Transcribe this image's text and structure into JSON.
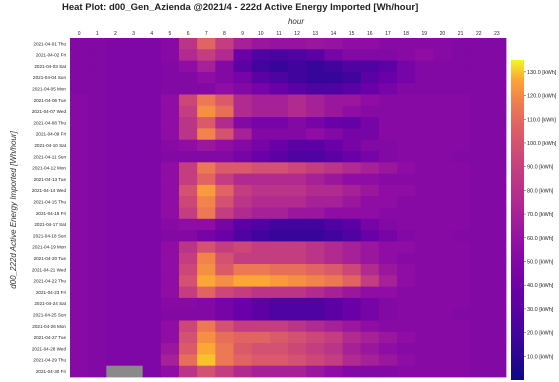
{
  "title": "Heat Plot: d00_Gen_Azienda  @2021/4 - 222d Active Energy Imported [Wh/hour]",
  "chart_data": {
    "type": "heatmap",
    "title": "Heat Plot: d00_Gen_Azienda  @2021/4 - 222d Active Energy Imported [Wh/hour]",
    "xlabel": "hour",
    "ylabel": "d00_222d Active Energy Imported [Wh/hour]",
    "x": [
      "0",
      "1",
      "2",
      "3",
      "4",
      "5",
      "6",
      "7",
      "8",
      "9",
      "10",
      "11",
      "12",
      "13",
      "14",
      "15",
      "16",
      "17",
      "18",
      "19",
      "20",
      "21",
      "22",
      "23"
    ],
    "y": [
      "2021-04-01 Thu",
      "2021-04-02 Fri",
      "2021-04-03 Sat",
      "2021-04-04 Sun",
      "2021-04-05 Mon",
      "2021-04-06 Tue",
      "2021-04-07 Wed",
      "2021-04-08 Thu",
      "2021-04-09 Fri",
      "2021-04-10 Sat",
      "2021-04-11 Sun",
      "2021-04-12 Mon",
      "2021-04-13 Tue",
      "2021-04-14 Wed",
      "2021-04-15 Thu",
      "2021-04-16 Fri",
      "2021-04-17 Sat",
      "2021-04-18 Sun",
      "2021-04-19 Mon",
      "2021-04-20 Tue",
      "2021-04-21 Wed",
      "2021-04-22 Thu",
      "2021-04-23 Fri",
      "2021-04-24 Sat",
      "2021-04-25 Sun",
      "2021-04-26 Mon",
      "2021-04-27 Tue",
      "2021-04-28 Wed",
      "2021-04-29 Thu",
      "2021-04-30 Fri"
    ],
    "x_tick_labels": [
      "0",
      "1",
      "2",
      "3",
      "4",
      "5",
      "6",
      "7",
      "8",
      "9",
      "10",
      "11",
      "12",
      "13",
      "14",
      "15",
      "16",
      "17",
      "18",
      "19",
      "20",
      "21",
      "22",
      "23"
    ],
    "y_tick_labels": [
      "2021-04-01 Thu",
      "2021-04-02 Fri",
      "2021-04-03 Sat",
      "2021-04-04 Sun",
      "2021-04-05 Mon",
      "2021-04-06 Tue",
      "2021-04-07 Wed",
      "2021-04-08 Thu",
      "2021-04-09 Fri",
      "2021-04-10 Sat",
      "2021-04-11 Sun",
      "2021-04-12 Mon",
      "2021-04-13 Tue",
      "2021-04-14 Wed",
      "2021-04-15 Thu",
      "2021-04-16 Fri",
      "2021-04-17 Sat",
      "2021-04-18 Sun",
      "2021-04-19 Mon",
      "2021-04-20 Tue",
      "2021-04-21 Wed",
      "2021-04-22 Thu",
      "2021-04-23 Fri",
      "2021-04-24 Sat",
      "2021-04-25 Sun",
      "2021-04-26 Mon",
      "2021-04-27 Tue",
      "2021-04-28 Wed",
      "2021-04-29 Thu",
      "2021-04-30 Fri"
    ],
    "values": [
      [
        40,
        40,
        38,
        38,
        38,
        42,
        65,
        90,
        70,
        55,
        50,
        48,
        48,
        50,
        48,
        45,
        45,
        42,
        42,
        42,
        42,
        40,
        40,
        40
      ],
      [
        40,
        40,
        38,
        38,
        38,
        42,
        60,
        70,
        60,
        30,
        20,
        18,
        20,
        25,
        35,
        40,
        40,
        40,
        42,
        45,
        42,
        40,
        40,
        40
      ],
      [
        40,
        40,
        38,
        38,
        38,
        40,
        45,
        55,
        40,
        25,
        15,
        12,
        15,
        12,
        15,
        20,
        20,
        25,
        35,
        40,
        40,
        40,
        40,
        40
      ],
      [
        40,
        40,
        38,
        38,
        38,
        40,
        40,
        45,
        40,
        35,
        25,
        20,
        15,
        12,
        12,
        15,
        25,
        30,
        35,
        40,
        40,
        40,
        40,
        40
      ],
      [
        40,
        40,
        38,
        38,
        38,
        40,
        40,
        40,
        45,
        40,
        35,
        30,
        25,
        20,
        20,
        25,
        30,
        35,
        40,
        40,
        40,
        40,
        40,
        40
      ],
      [
        42,
        40,
        38,
        38,
        38,
        45,
        75,
        100,
        85,
        60,
        55,
        55,
        60,
        55,
        50,
        50,
        45,
        42,
        42,
        42,
        42,
        42,
        40,
        40
      ],
      [
        42,
        40,
        38,
        38,
        38,
        45,
        70,
        110,
        95,
        60,
        55,
        55,
        60,
        55,
        50,
        45,
        42,
        42,
        42,
        42,
        42,
        42,
        40,
        40
      ],
      [
        42,
        40,
        38,
        38,
        38,
        45,
        65,
        85,
        60,
        40,
        35,
        35,
        40,
        35,
        30,
        28,
        35,
        42,
        42,
        42,
        42,
        42,
        40,
        40
      ],
      [
        42,
        40,
        38,
        38,
        38,
        45,
        65,
        105,
        80,
        55,
        40,
        40,
        40,
        45,
        40,
        35,
        35,
        42,
        42,
        42,
        42,
        42,
        40,
        40
      ],
      [
        42,
        40,
        38,
        38,
        38,
        42,
        45,
        50,
        45,
        40,
        35,
        30,
        25,
        25,
        30,
        35,
        40,
        40,
        42,
        42,
        42,
        42,
        40,
        40
      ],
      [
        42,
        40,
        38,
        38,
        38,
        40,
        40,
        40,
        40,
        35,
        30,
        25,
        20,
        20,
        25,
        30,
        35,
        40,
        42,
        42,
        42,
        40,
        40,
        40
      ],
      [
        42,
        40,
        38,
        38,
        38,
        45,
        70,
        100,
        85,
        85,
        80,
        80,
        75,
        70,
        65,
        60,
        55,
        50,
        45,
        42,
        42,
        42,
        40,
        40
      ],
      [
        42,
        40,
        38,
        38,
        38,
        45,
        70,
        90,
        70,
        60,
        60,
        60,
        60,
        55,
        50,
        45,
        45,
        42,
        42,
        42,
        42,
        42,
        40,
        40
      ],
      [
        42,
        40,
        38,
        38,
        38,
        45,
        80,
        115,
        90,
        70,
        65,
        65,
        65,
        60,
        60,
        55,
        50,
        45,
        45,
        42,
        42,
        42,
        40,
        40
      ],
      [
        42,
        40,
        38,
        38,
        38,
        45,
        75,
        105,
        80,
        65,
        60,
        60,
        60,
        55,
        55,
        50,
        45,
        45,
        42,
        42,
        42,
        42,
        40,
        40
      ],
      [
        42,
        40,
        38,
        38,
        38,
        45,
        70,
        100,
        70,
        60,
        55,
        55,
        50,
        50,
        45,
        45,
        45,
        42,
        42,
        42,
        42,
        42,
        40,
        40
      ],
      [
        42,
        40,
        38,
        38,
        38,
        42,
        45,
        45,
        35,
        25,
        20,
        15,
        15,
        15,
        20,
        25,
        35,
        40,
        42,
        42,
        42,
        42,
        40,
        40
      ],
      [
        42,
        40,
        38,
        38,
        38,
        40,
        40,
        35,
        30,
        20,
        15,
        12,
        12,
        12,
        15,
        20,
        30,
        35,
        40,
        42,
        42,
        40,
        40,
        40
      ],
      [
        42,
        40,
        38,
        38,
        38,
        45,
        65,
        80,
        70,
        75,
        70,
        70,
        70,
        65,
        60,
        55,
        50,
        45,
        45,
        42,
        42,
        42,
        40,
        40
      ],
      [
        42,
        40,
        38,
        38,
        38,
        45,
        70,
        105,
        80,
        70,
        70,
        70,
        70,
        65,
        60,
        55,
        50,
        45,
        42,
        42,
        42,
        42,
        40,
        40
      ],
      [
        42,
        40,
        38,
        38,
        38,
        45,
        75,
        110,
        85,
        100,
        100,
        95,
        95,
        90,
        85,
        75,
        60,
        50,
        45,
        42,
        42,
        42,
        40,
        40
      ],
      [
        42,
        40,
        38,
        38,
        38,
        45,
        80,
        120,
        110,
        120,
        120,
        115,
        110,
        105,
        100,
        90,
        70,
        55,
        45,
        42,
        42,
        42,
        40,
        40
      ],
      [
        42,
        40,
        38,
        38,
        38,
        45,
        70,
        90,
        75,
        70,
        65,
        65,
        65,
        60,
        55,
        50,
        45,
        45,
        42,
        42,
        42,
        42,
        40,
        40
      ],
      [
        42,
        40,
        38,
        38,
        38,
        42,
        42,
        40,
        35,
        30,
        25,
        20,
        20,
        20,
        25,
        30,
        35,
        40,
        42,
        42,
        42,
        42,
        40,
        40
      ],
      [
        42,
        40,
        38,
        38,
        38,
        40,
        40,
        40,
        35,
        30,
        25,
        20,
        20,
        20,
        25,
        30,
        35,
        40,
        42,
        42,
        42,
        40,
        40,
        40
      ],
      [
        42,
        40,
        38,
        38,
        38,
        45,
        75,
        100,
        80,
        70,
        70,
        70,
        65,
        60,
        55,
        50,
        45,
        42,
        42,
        42,
        42,
        42,
        40,
        40
      ],
      [
        42,
        40,
        38,
        38,
        38,
        45,
        80,
        110,
        95,
        90,
        90,
        85,
        80,
        75,
        70,
        60,
        55,
        50,
        45,
        42,
        42,
        42,
        40,
        40
      ],
      [
        42,
        40,
        38,
        38,
        38,
        50,
        85,
        120,
        100,
        85,
        80,
        80,
        75,
        70,
        65,
        55,
        50,
        45,
        42,
        42,
        42,
        42,
        40,
        40
      ],
      [
        42,
        40,
        38,
        38,
        38,
        55,
        95,
        125,
        100,
        90,
        85,
        85,
        80,
        75,
        70,
        60,
        55,
        50,
        45,
        42,
        42,
        42,
        40,
        40
      ],
      [
        42,
        40,
        null,
        null,
        38,
        45,
        65,
        80,
        70,
        60,
        55,
        55,
        55,
        50,
        45,
        40,
        40,
        40,
        42,
        42,
        42,
        42,
        40,
        40
      ]
    ],
    "colorbar": {
      "colormap": "plasma",
      "range": [
        0,
        135
      ],
      "ticks": [
        10,
        20,
        30,
        40,
        50,
        60,
        70,
        80,
        90,
        100,
        110,
        120,
        130
      ],
      "tick_labels": [
        "10.0 [kWh]",
        "20.0 [kWh]",
        "30.0 [kWh]",
        "40.0 [kWh]",
        "50.0 [kWh]",
        "60.0 [kWh]",
        "70.0 [kWh]",
        "80.0 [kWh]",
        "90.0 [kWh]",
        "100.0 [kWh]",
        "110.0 [kWh]",
        "120.0 [kWh]",
        "130.0 [kWh]"
      ]
    },
    "missing_color": "#8a8a8a",
    "grid": false
  }
}
